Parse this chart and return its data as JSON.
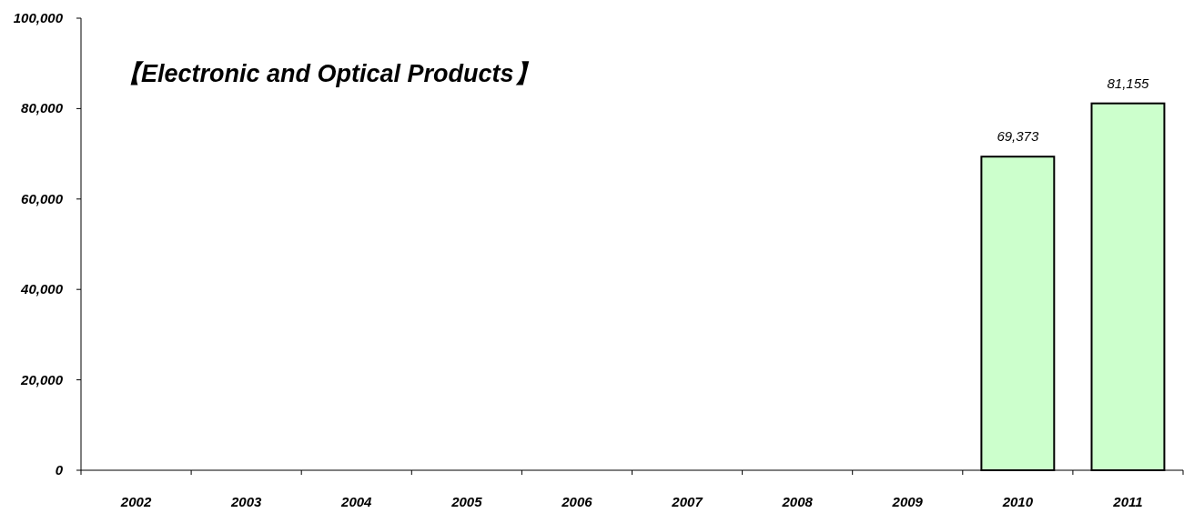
{
  "chart_data": {
    "type": "bar",
    "title": "【Electronic and Optical Products】",
    "categories": [
      "2002",
      "2003",
      "2004",
      "2005",
      "2006",
      "2007",
      "2008",
      "2009",
      "2010",
      "2011"
    ],
    "values": [
      null,
      null,
      null,
      null,
      null,
      null,
      null,
      null,
      69373,
      81155
    ],
    "value_labels": [
      null,
      null,
      null,
      null,
      null,
      null,
      null,
      null,
      "69,373",
      "81,155"
    ],
    "color": "#ccffcc",
    "ylim": [
      0,
      100000
    ],
    "yticks": [
      0,
      {
        "value": 20000,
        "label": "20,000"
      },
      {
        "value": 40000,
        "label": "40,000"
      },
      {
        "value": 60000,
        "label": "60,000"
      },
      {
        "value": 80000,
        "label": "80,000"
      },
      {
        "value": 100000,
        "label": "100,000"
      }
    ],
    "ylabel": null
  }
}
